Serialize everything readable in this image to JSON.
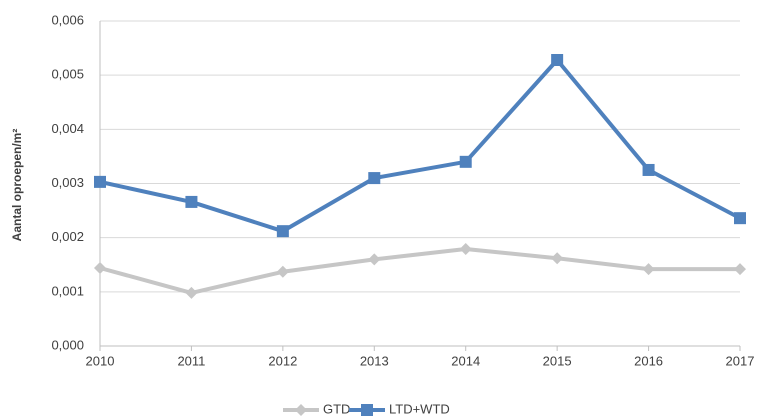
{
  "chart_data": {
    "type": "line",
    "y_label": "Aantal oproepen/m²",
    "x": [
      2010,
      2011,
      2012,
      2013,
      2014,
      2015,
      2016,
      2017
    ],
    "xlim": [
      2010,
      2017
    ],
    "xticks": [
      2010,
      2011,
      2012,
      2013,
      2014,
      2015,
      2016,
      2017
    ],
    "ylim": [
      0,
      0.006
    ],
    "yticks": [
      {
        "value": 0,
        "label": "0,000"
      },
      {
        "value": 0.001,
        "label": "0,001"
      },
      {
        "value": 0.002,
        "label": "0,002"
      },
      {
        "value": 0.003,
        "label": "0,003"
      },
      {
        "value": 0.004,
        "label": "0,004"
      },
      {
        "value": 0.005,
        "label": "0,005"
      },
      {
        "value": 0.006,
        "label": "0,006"
      }
    ],
    "grid": true,
    "legend": "bottom",
    "series": [
      {
        "name": "GTD",
        "color": "#c6c6c6",
        "marker": "diamond",
        "values": [
          0.00144,
          0.00098,
          0.00137,
          0.0016,
          0.00179,
          0.00162,
          0.00142,
          0.00142
        ]
      },
      {
        "name": "LTD+WTD",
        "color": "#4f81bd",
        "marker": "square",
        "values": [
          0.00303,
          0.00266,
          0.00212,
          0.0031,
          0.0034,
          0.00528,
          0.00325,
          0.00236
        ]
      }
    ]
  }
}
